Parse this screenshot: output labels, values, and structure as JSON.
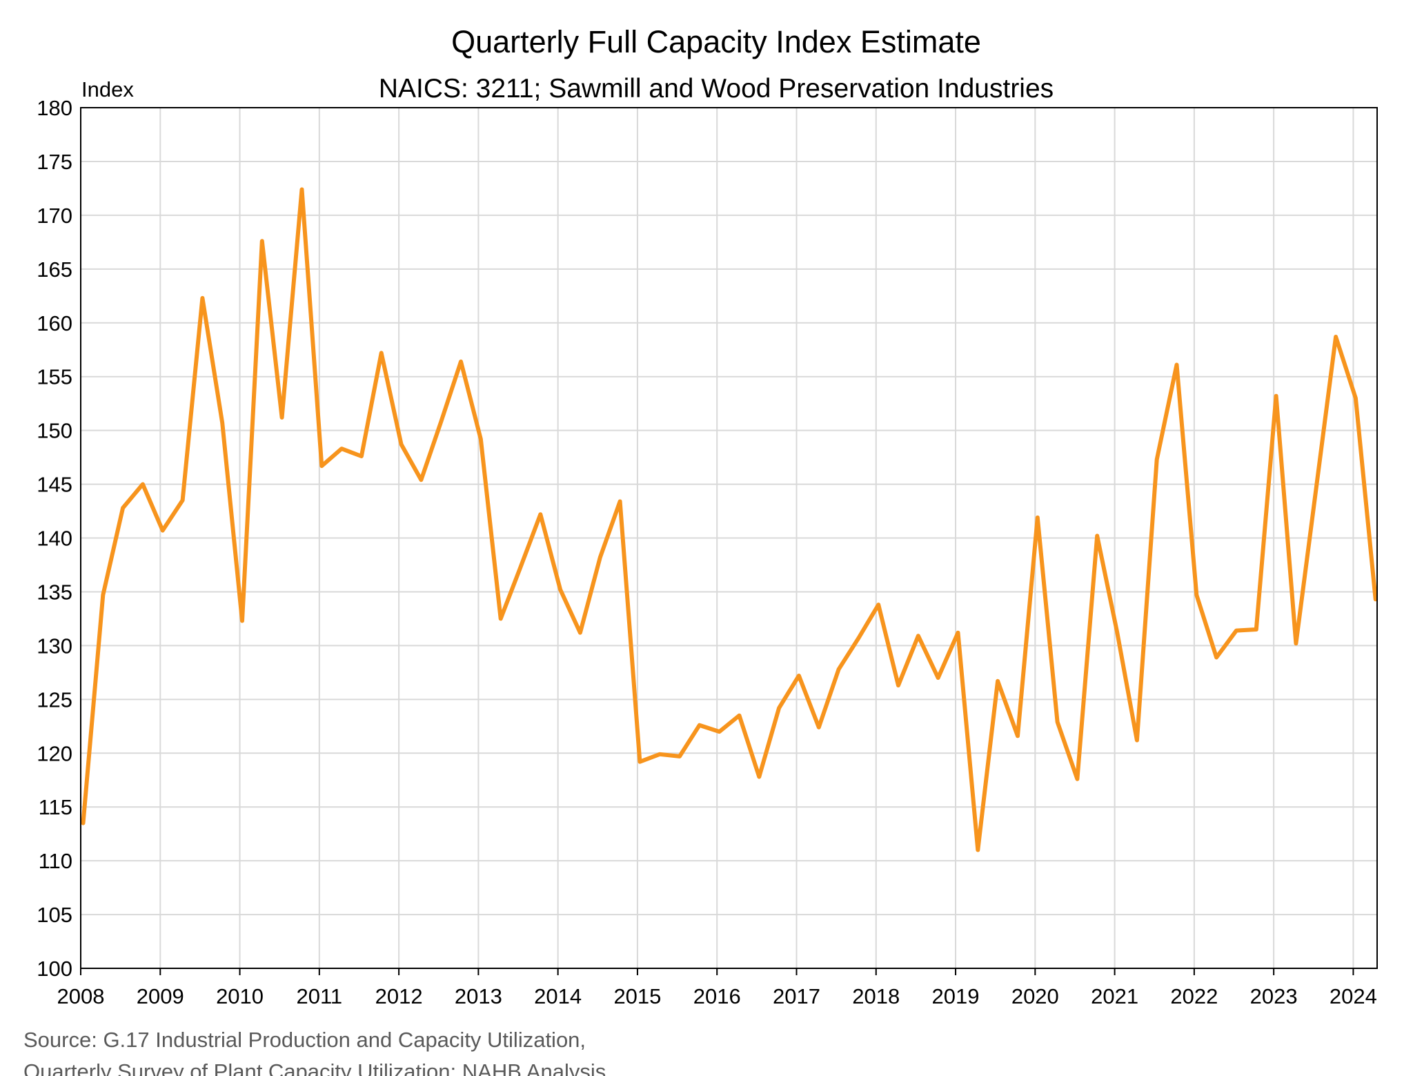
{
  "chart_data": {
    "type": "line",
    "title": "Quarterly Full Capacity Index Estimate",
    "subtitle": "NAICS: 3211; Sawmill and Wood Preservation Industries",
    "ylabel": "Index",
    "xlabel": "",
    "ylim": [
      100,
      180
    ],
    "yticks": [
      "100",
      "105",
      "110",
      "115",
      "120",
      "125",
      "130",
      "135",
      "140",
      "145",
      "150",
      "155",
      "160",
      "165",
      "170",
      "175",
      "180"
    ],
    "xlim": [
      2008,
      2024.3
    ],
    "xticks": [
      "2008",
      "2009",
      "2010",
      "2011",
      "2012",
      "2013",
      "2014",
      "2015",
      "2016",
      "2017",
      "2018",
      "2019",
      "2020",
      "2021",
      "2022",
      "2023",
      "2024"
    ],
    "grid": true,
    "legend": "none",
    "series_color": "#f7941d",
    "source_lines": [
      "Source: G.17 Industrial Production and Capacity Utilization,",
      "Quarterly Survey of Plant Capacity Utilization; NAHB Analysis"
    ],
    "series": [
      {
        "x": [
          2008.03,
          2008.28,
          2008.53,
          2008.78,
          2009.03,
          2009.28,
          2009.53,
          2009.78,
          2010.03,
          2010.28,
          2010.53,
          2010.78,
          2011.03,
          2011.28,
          2011.53,
          2011.78,
          2012.03,
          2012.28,
          2012.53,
          2012.78,
          2013.03,
          2013.28,
          2013.53,
          2013.78,
          2014.03,
          2014.28,
          2014.53,
          2014.78,
          2015.03,
          2015.28,
          2015.53,
          2015.78,
          2016.03,
          2016.28,
          2016.53,
          2016.78,
          2017.03,
          2017.28,
          2017.53,
          2017.78,
          2018.03,
          2018.28,
          2018.53,
          2018.78,
          2019.03,
          2019.28,
          2019.53,
          2019.78,
          2020.03,
          2020.28,
          2020.53,
          2020.78,
          2021.03,
          2021.28,
          2021.53,
          2021.78,
          2022.03,
          2022.28,
          2022.53,
          2022.78,
          2023.03,
          2023.28,
          2023.53,
          2023.78,
          2024.03,
          2024.28
        ],
        "values": [
          113.5,
          134.7,
          142.8,
          145.0,
          140.7,
          143.5,
          162.3,
          150.7,
          132.3,
          167.6,
          151.2,
          172.4,
          146.7,
          148.3,
          147.6,
          157.2,
          148.7,
          145.4,
          150.8,
          156.4,
          149.2,
          132.5,
          137.3,
          142.2,
          135.2,
          131.2,
          138.2,
          143.4,
          119.2,
          119.9,
          119.7,
          122.6,
          122.0,
          123.5,
          117.8,
          124.2,
          127.2,
          122.4,
          127.8,
          130.7,
          133.8,
          126.3,
          130.9,
          127.0,
          131.2,
          111.0,
          126.7,
          121.6,
          141.9,
          122.9,
          117.6,
          140.2,
          131.3,
          121.2,
          147.3,
          156.1,
          134.7,
          128.9,
          131.4,
          131.5,
          153.2,
          130.2,
          144.4,
          158.7,
          153.0,
          134.3
        ]
      }
    ]
  }
}
